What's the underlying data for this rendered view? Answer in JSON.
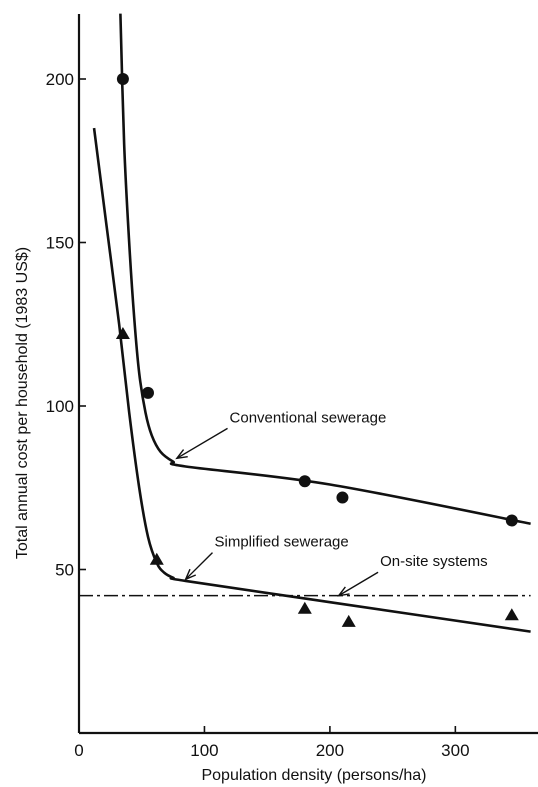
{
  "chart_data": {
    "type": "line",
    "xlabel": "Population density (persons/ha)",
    "ylabel": "Total annual cost per household (1983 US$)",
    "xlim": [
      0,
      360
    ],
    "ylim": [
      0,
      220
    ],
    "x_ticks": [
      0,
      100,
      200,
      300
    ],
    "y_ticks": [
      50,
      100,
      150,
      200
    ],
    "grid": false,
    "legend": "none",
    "series": [
      {
        "name": "Conventional sewerage",
        "marker": "circle",
        "style": "solid",
        "points": [
          [
            35,
            200
          ],
          [
            55,
            104
          ],
          [
            180,
            77
          ],
          [
            210,
            72
          ],
          [
            345,
            65
          ]
        ],
        "curve": [
          [
            33,
            220
          ],
          [
            36,
            180
          ],
          [
            40,
            150
          ],
          [
            44,
            127
          ],
          [
            48,
            110
          ],
          [
            53,
            98
          ],
          [
            58,
            91
          ],
          [
            65,
            86
          ],
          [
            75,
            83
          ],
          [
            85,
            81.5
          ],
          [
            200,
            76
          ],
          [
            360,
            64
          ]
        ]
      },
      {
        "name": "Simplified sewerage",
        "marker": "triangle",
        "style": "solid",
        "points": [
          [
            35,
            122
          ],
          [
            62,
            53
          ],
          [
            180,
            38
          ],
          [
            215,
            34
          ],
          [
            345,
            36
          ]
        ],
        "curve": [
          [
            12,
            185
          ],
          [
            22,
            155
          ],
          [
            32,
            125
          ],
          [
            40,
            98
          ],
          [
            48,
            75
          ],
          [
            55,
            60
          ],
          [
            62,
            52
          ],
          [
            68,
            49
          ],
          [
            75,
            47.5
          ],
          [
            85,
            46.5
          ],
          [
            200,
            40
          ],
          [
            360,
            31
          ]
        ]
      },
      {
        "name": "On-site systems",
        "marker": "none",
        "style": "dash-dot",
        "points": [],
        "curve": [
          [
            0,
            42
          ],
          [
            360,
            42
          ]
        ]
      }
    ],
    "annotations": [
      {
        "text": "Conventional sewerage",
        "label_at": [
          120,
          95
        ],
        "arrow_to": [
          78,
          84
        ]
      },
      {
        "text": "Simplified sewerage",
        "label_at": [
          108,
          57
        ],
        "arrow_to": [
          85,
          47
        ]
      },
      {
        "text": "On-site systems",
        "label_at": [
          240,
          51
        ],
        "arrow_to": [
          207,
          42
        ]
      }
    ]
  }
}
